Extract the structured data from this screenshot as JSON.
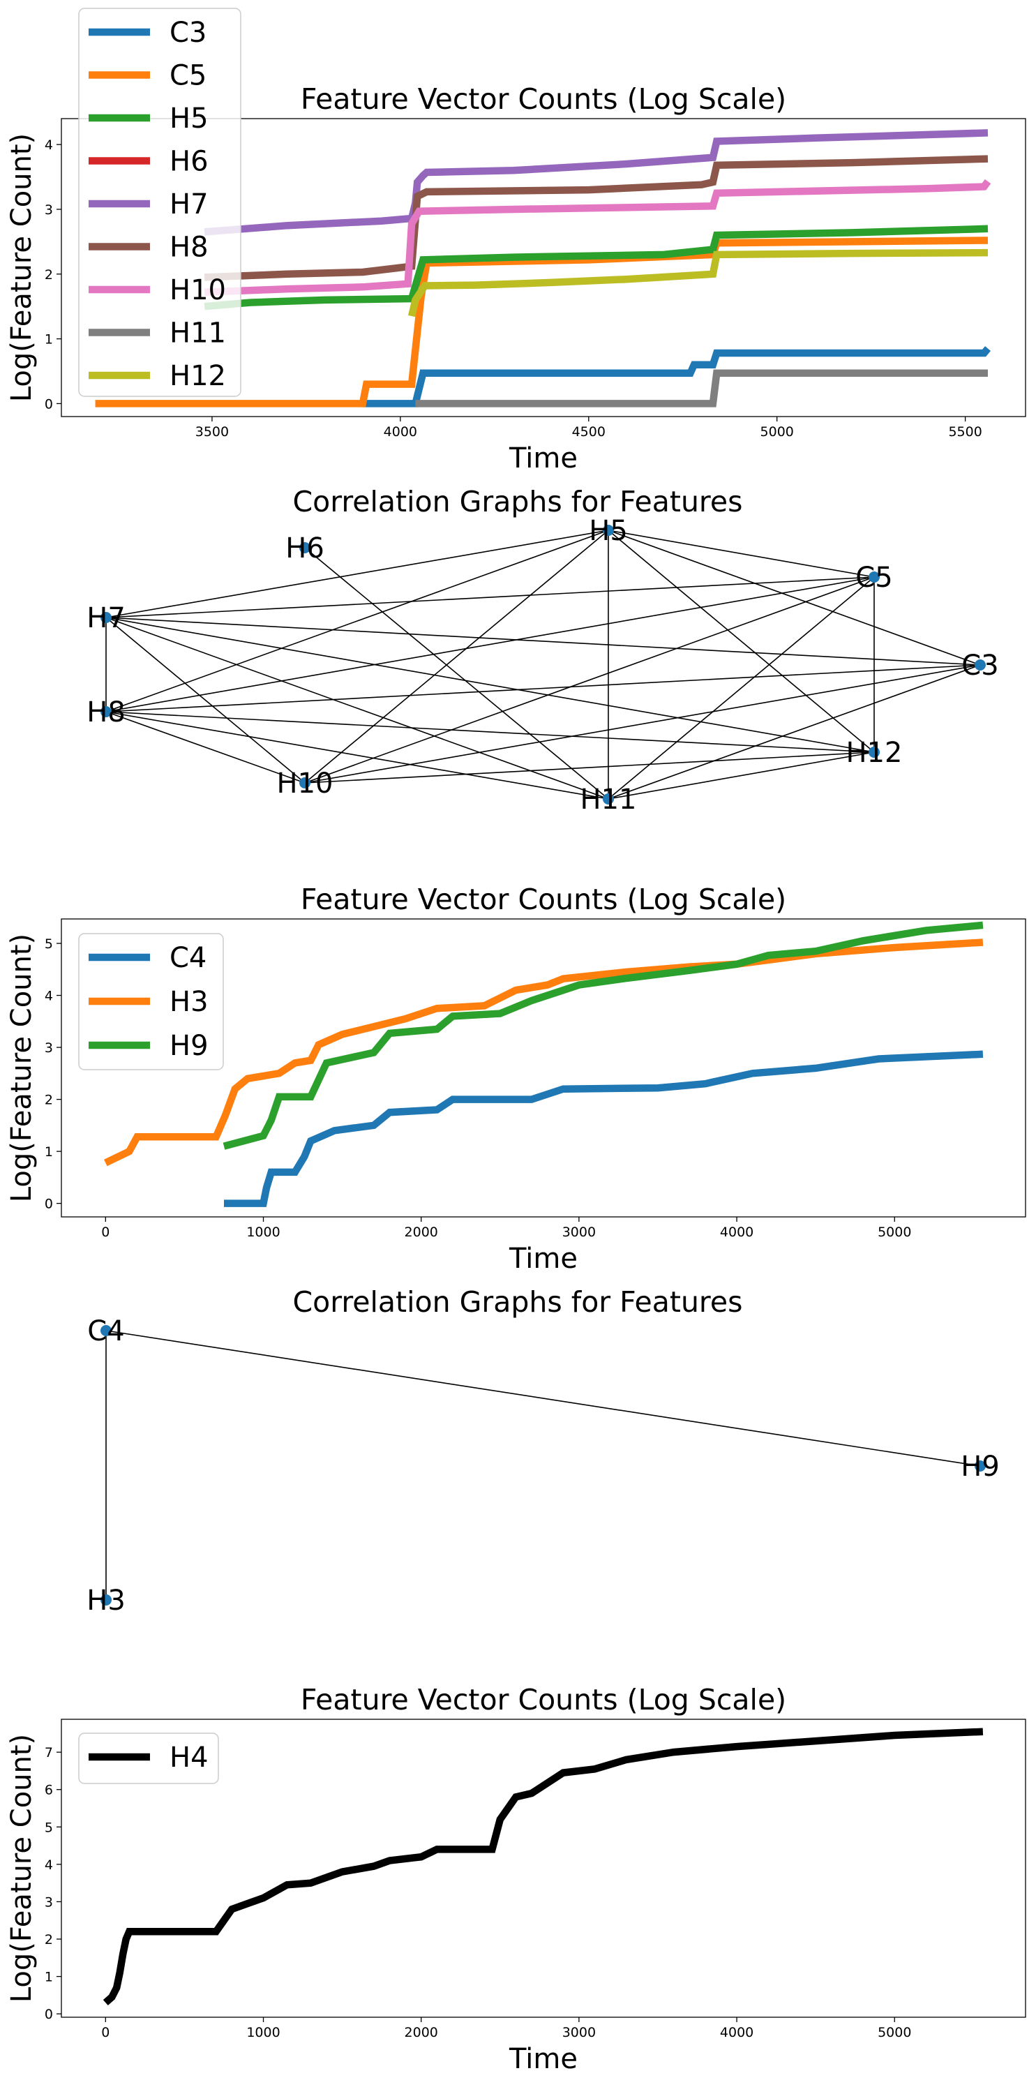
{
  "colors": {
    "C3": "#1f77b4",
    "C5": "#ff7f0e",
    "H5": "#2ca02c",
    "H6": "#d62728",
    "H7": "#9467bd",
    "H8": "#8c564b",
    "H10": "#e377c2",
    "H11": "#7f7f7f",
    "H12": "#bcbd22",
    "C4": "#1f77b4",
    "H3": "#ff7f0e",
    "H9": "#2ca02c",
    "H4": "#000000",
    "node": "#1f77b4",
    "edge": "#000000"
  },
  "chart_data": [
    {
      "type": "line",
      "title": "Feature Vector Counts (Log Scale)",
      "xlabel": "Time",
      "ylabel": "Log(Feature Count)",
      "xlim": [
        3100,
        5660
      ],
      "ylim": [
        -0.2,
        4.4
      ],
      "xticks": [
        3500,
        4000,
        4500,
        5000,
        5500
      ],
      "yticks": [
        0,
        1,
        2,
        3,
        4
      ],
      "legend": {
        "placement": "upper-left, overflowing above the axes"
      },
      "series": [
        {
          "name": "C3",
          "points": [
            [
              3900,
              0
            ],
            [
              4040,
              0
            ],
            [
              4060,
              0.47
            ],
            [
              4770,
              0.47
            ],
            [
              4780,
              0.6
            ],
            [
              4830,
              0.6
            ],
            [
              4840,
              0.78
            ],
            [
              5550,
              0.78
            ],
            [
              5560,
              0.85
            ]
          ]
        },
        {
          "name": "C5",
          "points": [
            [
              3190,
              0
            ],
            [
              3900,
              0
            ],
            [
              3910,
              0.3
            ],
            [
              4030,
              0.3
            ],
            [
              4055,
              1.65
            ],
            [
              4070,
              2.17
            ],
            [
              4500,
              2.22
            ],
            [
              4830,
              2.3
            ],
            [
              4840,
              2.48
            ],
            [
              5560,
              2.52
            ]
          ]
        },
        {
          "name": "H5",
          "points": [
            [
              3480,
              1.5
            ],
            [
              3600,
              1.56
            ],
            [
              3800,
              1.6
            ],
            [
              4030,
              1.62
            ],
            [
              4060,
              2.22
            ],
            [
              4300,
              2.26
            ],
            [
              4700,
              2.3
            ],
            [
              4830,
              2.38
            ],
            [
              4840,
              2.6
            ],
            [
              5200,
              2.64
            ],
            [
              5560,
              2.7
            ]
          ]
        },
        {
          "name": "H6",
          "points": []
        },
        {
          "name": "H7",
          "points": [
            [
              3480,
              2.65
            ],
            [
              3700,
              2.75
            ],
            [
              3950,
              2.82
            ],
            [
              4030,
              2.86
            ],
            [
              4040,
              3.1
            ],
            [
              4045,
              3.42
            ],
            [
              4060,
              3.52
            ],
            [
              4070,
              3.57
            ],
            [
              4300,
              3.6
            ],
            [
              4600,
              3.7
            ],
            [
              4830,
              3.8
            ],
            [
              4840,
              4.05
            ],
            [
              5100,
              4.1
            ],
            [
              5560,
              4.18
            ]
          ]
        },
        {
          "name": "H8",
          "points": [
            [
              3480,
              1.95
            ],
            [
              3700,
              2.0
            ],
            [
              3900,
              2.03
            ],
            [
              4030,
              2.12
            ],
            [
              4045,
              3.2
            ],
            [
              4070,
              3.27
            ],
            [
              4500,
              3.3
            ],
            [
              4800,
              3.38
            ],
            [
              4830,
              3.42
            ],
            [
              4840,
              3.68
            ],
            [
              5200,
              3.72
            ],
            [
              5560,
              3.78
            ]
          ]
        },
        {
          "name": "H10",
          "points": [
            [
              3480,
              1.72
            ],
            [
              3700,
              1.77
            ],
            [
              3900,
              1.8
            ],
            [
              4020,
              1.85
            ],
            [
              4030,
              2.78
            ],
            [
              4050,
              2.97
            ],
            [
              4300,
              3.0
            ],
            [
              4830,
              3.05
            ],
            [
              4840,
              3.25
            ],
            [
              5400,
              3.32
            ],
            [
              5550,
              3.35
            ],
            [
              5560,
              3.43
            ]
          ]
        },
        {
          "name": "H11",
          "points": [
            [
              4040,
              0
            ],
            [
              4830,
              0
            ],
            [
              4840,
              0.47
            ],
            [
              5560,
              0.47
            ]
          ]
        },
        {
          "name": "H12",
          "points": [
            [
              4030,
              1.35
            ],
            [
              4040,
              1.6
            ],
            [
              4065,
              1.82
            ],
            [
              4200,
              1.83
            ],
            [
              4400,
              1.87
            ],
            [
              4600,
              1.92
            ],
            [
              4830,
              2.0
            ],
            [
              4840,
              2.3
            ],
            [
              5200,
              2.32
            ],
            [
              5560,
              2.33
            ]
          ]
        }
      ]
    },
    {
      "type": "graph",
      "title": "Correlation Graphs for Features",
      "nodes": [
        "H6",
        "H5",
        "C5",
        "H7",
        "C3",
        "H8",
        "H12",
        "H10",
        "H11"
      ],
      "edges": [
        [
          "H6",
          "H11"
        ],
        [
          "H5",
          "H7"
        ],
        [
          "H5",
          "H8"
        ],
        [
          "H5",
          "H10"
        ],
        [
          "H5",
          "H11"
        ],
        [
          "H5",
          "H12"
        ],
        [
          "H5",
          "C3"
        ],
        [
          "H5",
          "C5"
        ],
        [
          "C5",
          "H7"
        ],
        [
          "C5",
          "H8"
        ],
        [
          "C5",
          "H10"
        ],
        [
          "C5",
          "H11"
        ],
        [
          "C5",
          "H12"
        ],
        [
          "H7",
          "H8"
        ],
        [
          "H7",
          "H10"
        ],
        [
          "H7",
          "H11"
        ],
        [
          "H7",
          "H12"
        ],
        [
          "H7",
          "C3"
        ],
        [
          "H8",
          "H10"
        ],
        [
          "H8",
          "H11"
        ],
        [
          "H8",
          "H12"
        ],
        [
          "H8",
          "C3"
        ],
        [
          "H10",
          "H12"
        ],
        [
          "H10",
          "C3"
        ],
        [
          "H11",
          "H12"
        ],
        [
          "H11",
          "C3"
        ]
      ]
    },
    {
      "type": "line",
      "title": "Feature Vector Counts (Log Scale)",
      "xlabel": "Time",
      "ylabel": "Log(Feature Count)",
      "xlim": [
        -280,
        5830
      ],
      "ylim": [
        -0.26,
        5.47
      ],
      "xticks": [
        0,
        1000,
        2000,
        3000,
        4000,
        5000
      ],
      "yticks": [
        0,
        1,
        2,
        3,
        4,
        5
      ],
      "legend": {
        "placement": "upper-left"
      },
      "series": [
        {
          "name": "C4",
          "points": [
            [
              750,
              0
            ],
            [
              1000,
              0
            ],
            [
              1020,
              0.3
            ],
            [
              1050,
              0.6
            ],
            [
              1200,
              0.6
            ],
            [
              1260,
              0.9
            ],
            [
              1300,
              1.2
            ],
            [
              1450,
              1.4
            ],
            [
              1700,
              1.5
            ],
            [
              1800,
              1.75
            ],
            [
              2100,
              1.8
            ],
            [
              2200,
              2.0
            ],
            [
              2700,
              2.0
            ],
            [
              2900,
              2.2
            ],
            [
              3500,
              2.22
            ],
            [
              3800,
              2.3
            ],
            [
              4100,
              2.5
            ],
            [
              4500,
              2.6
            ],
            [
              4900,
              2.78
            ],
            [
              5560,
              2.87
            ]
          ]
        },
        {
          "name": "H3",
          "points": [
            [
              0,
              0.78
            ],
            [
              150,
              1.0
            ],
            [
              200,
              1.28
            ],
            [
              700,
              1.28
            ],
            [
              760,
              1.7
            ],
            [
              820,
              2.2
            ],
            [
              900,
              2.4
            ],
            [
              1100,
              2.5
            ],
            [
              1200,
              2.7
            ],
            [
              1300,
              2.75
            ],
            [
              1350,
              3.05
            ],
            [
              1500,
              3.25
            ],
            [
              1700,
              3.4
            ],
            [
              1900,
              3.55
            ],
            [
              2100,
              3.75
            ],
            [
              2400,
              3.8
            ],
            [
              2600,
              4.1
            ],
            [
              2800,
              4.2
            ],
            [
              2900,
              4.32
            ],
            [
              3300,
              4.45
            ],
            [
              3700,
              4.55
            ],
            [
              4000,
              4.6
            ],
            [
              4500,
              4.8
            ],
            [
              5000,
              4.92
            ],
            [
              5560,
              5.02
            ]
          ]
        },
        {
          "name": "H9",
          "points": [
            [
              750,
              1.1
            ],
            [
              1000,
              1.3
            ],
            [
              1050,
              1.6
            ],
            [
              1100,
              2.05
            ],
            [
              1300,
              2.05
            ],
            [
              1400,
              2.7
            ],
            [
              1700,
              2.9
            ],
            [
              1800,
              3.27
            ],
            [
              2100,
              3.35
            ],
            [
              2200,
              3.6
            ],
            [
              2500,
              3.65
            ],
            [
              2700,
              3.9
            ],
            [
              2900,
              4.1
            ],
            [
              3000,
              4.2
            ],
            [
              3300,
              4.33
            ],
            [
              3700,
              4.48
            ],
            [
              4000,
              4.6
            ],
            [
              4200,
              4.77
            ],
            [
              4500,
              4.85
            ],
            [
              4800,
              5.05
            ],
            [
              5200,
              5.25
            ],
            [
              5560,
              5.35
            ]
          ]
        }
      ]
    },
    {
      "type": "graph",
      "title": "Correlation Graphs for Features",
      "nodes": [
        "C4",
        "H9",
        "H3"
      ],
      "edges": [
        [
          "C4",
          "H9"
        ],
        [
          "C4",
          "H3"
        ]
      ]
    },
    {
      "type": "line",
      "title": "Feature Vector Counts (Log Scale)",
      "xlabel": "Time",
      "ylabel": "Log(Feature Count)",
      "xlim": [
        -280,
        5830
      ],
      "ylim": [
        -0.09,
        7.88
      ],
      "xticks": [
        0,
        1000,
        2000,
        3000,
        4000,
        5000
      ],
      "yticks": [
        0,
        1,
        2,
        3,
        4,
        5,
        6,
        7
      ],
      "legend": {
        "placement": "upper-left"
      },
      "series": [
        {
          "name": "H4",
          "points": [
            [
              0,
              0.3
            ],
            [
              40,
              0.45
            ],
            [
              70,
              0.7
            ],
            [
              90,
              1.1
            ],
            [
              110,
              1.6
            ],
            [
              130,
              2.0
            ],
            [
              150,
              2.2
            ],
            [
              400,
              2.2
            ],
            [
              700,
              2.2
            ],
            [
              750,
              2.5
            ],
            [
              800,
              2.8
            ],
            [
              900,
              2.95
            ],
            [
              1000,
              3.1
            ],
            [
              1150,
              3.45
            ],
            [
              1300,
              3.5
            ],
            [
              1500,
              3.8
            ],
            [
              1700,
              3.95
            ],
            [
              1800,
              4.1
            ],
            [
              2000,
              4.2
            ],
            [
              2100,
              4.4
            ],
            [
              2450,
              4.4
            ],
            [
              2500,
              5.2
            ],
            [
              2600,
              5.8
            ],
            [
              2700,
              5.9
            ],
            [
              2900,
              6.45
            ],
            [
              3100,
              6.55
            ],
            [
              3300,
              6.8
            ],
            [
              3600,
              7.0
            ],
            [
              4000,
              7.15
            ],
            [
              4500,
              7.3
            ],
            [
              5000,
              7.45
            ],
            [
              5560,
              7.55
            ]
          ]
        }
      ]
    }
  ]
}
